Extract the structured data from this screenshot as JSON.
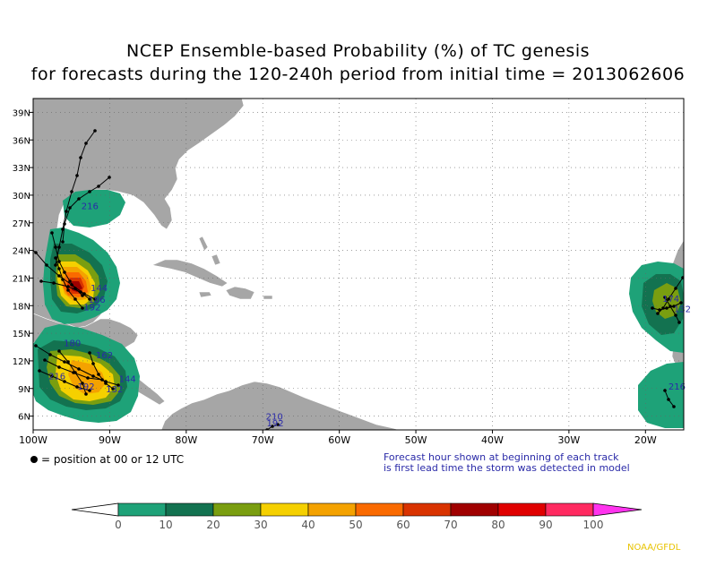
{
  "title": {
    "line1": "NCEP Ensemble-based Probability (%) of TC genesis",
    "line2": "for forecasts during the 120-240h period from initial time = 2013062606"
  },
  "map": {
    "lon_range": [
      -100,
      -15
    ],
    "lat_range": [
      4.5,
      40.5
    ],
    "lon_ticks": [
      "100W",
      "90W",
      "80W",
      "70W",
      "60W",
      "50W",
      "40W",
      "30W",
      "20W"
    ],
    "lat_ticks": [
      "6N",
      "9N",
      "12N",
      "15N",
      "18N",
      "21N",
      "24N",
      "27N",
      "30N",
      "33N",
      "36N",
      "39N"
    ],
    "land_color": "#a6a6a6",
    "grid": true
  },
  "track_labels": [
    {
      "text": "216",
      "lon": -93.7,
      "lat": 28.5
    },
    {
      "text": "144",
      "lon": -92.5,
      "lat": 19.6
    },
    {
      "text": "186",
      "lon": -92.8,
      "lat": 18.3
    },
    {
      "text": "192",
      "lon": -93.4,
      "lat": 17.5
    },
    {
      "text": "180",
      "lon": -96.0,
      "lat": 13.6
    },
    {
      "text": "162",
      "lon": -91.8,
      "lat": 12.3
    },
    {
      "text": "216",
      "lon": -98.0,
      "lat": 10.0
    },
    {
      "text": "192",
      "lon": -94.2,
      "lat": 8.9
    },
    {
      "text": "132",
      "lon": -90.5,
      "lat": 8.6
    },
    {
      "text": "144",
      "lon": -88.8,
      "lat": 9.7
    },
    {
      "text": "174",
      "lon": -17.8,
      "lat": 18.4
    },
    {
      "text": "132",
      "lon": -16.3,
      "lat": 17.3
    },
    {
      "text": "216",
      "lon": -17.0,
      "lat": 8.9
    },
    {
      "text": "210",
      "lon": -69.6,
      "lat": 5.6
    },
    {
      "text": "192",
      "lon": -69.5,
      "lat": 4.9
    }
  ],
  "legend": {
    "labels": [
      "0",
      "10",
      "20",
      "30",
      "40",
      "50",
      "60",
      "70",
      "80",
      "90",
      "100"
    ],
    "colors": [
      "#1ea278",
      "#137250",
      "#7a9e10",
      "#f5d000",
      "#f4a200",
      "#fa6a00",
      "#d93300",
      "#a00000",
      "#e00000",
      "#ff2a60",
      "#ff33ee"
    ]
  },
  "notes": {
    "position": "= position at 00 or 12 UTC",
    "forecast_line1": "Forecast hour shown at beginning of each track",
    "forecast_line2": "is first lead time the storm was detected in model"
  },
  "credit": "NOAA/GFDL"
}
